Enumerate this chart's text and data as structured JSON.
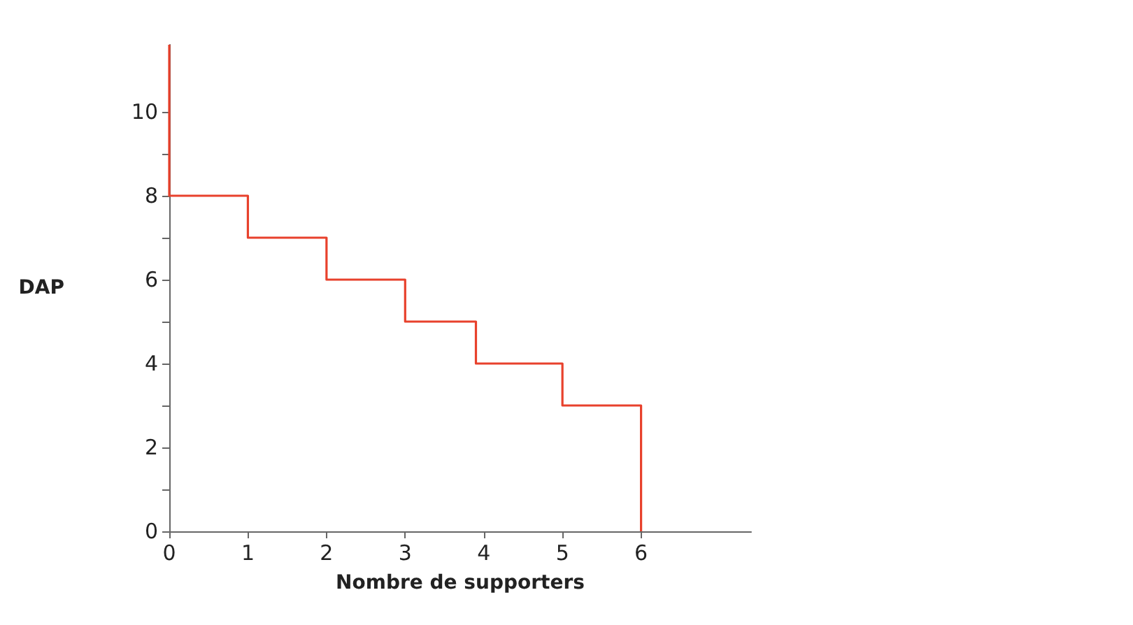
{
  "chart_data": {
    "type": "line",
    "xlabel": "Nombre de supporters",
    "ylabel": "DAP",
    "series": [
      {
        "color": "#e8412c",
        "x": [
          0,
          0,
          1,
          1,
          2,
          2,
          3,
          3,
          3.9,
          3.9,
          5,
          5,
          6,
          6
        ],
        "values": [
          11.6,
          8,
          8,
          7,
          7,
          6,
          6,
          5,
          5,
          4,
          4,
          3,
          3,
          0
        ]
      }
    ],
    "xlim": [
      0,
      7.4
    ],
    "ylim": [
      0,
      11.6
    ],
    "xticks": [
      0,
      1,
      2,
      3,
      4,
      5,
      6
    ],
    "yticks": [
      0,
      {
        "value": 1,
        "label": null
      },
      2,
      {
        "value": 3,
        "label": null
      },
      4,
      {
        "value": 5,
        "label": null
      },
      6,
      {
        "value": 7,
        "label": null
      },
      8,
      {
        "value": 9,
        "label": null
      },
      10
    ],
    "grid": false,
    "marker": "none",
    "line_style": "solid"
  }
}
